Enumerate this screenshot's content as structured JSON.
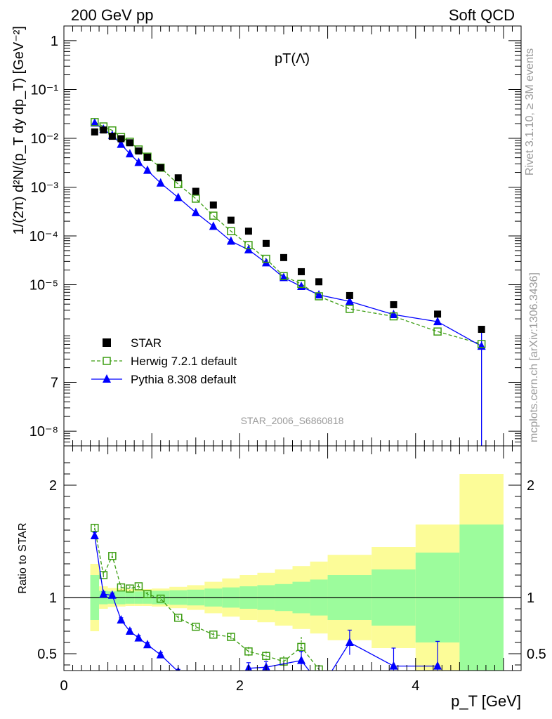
{
  "header": {
    "left": "200 GeV pp",
    "right": "Soft QCD"
  },
  "side_text": {
    "rivet": "Rivet 3.1.10, ≥ 3M events",
    "mcplots": "mcplots.cern.ch [arXiv:1306.3436]"
  },
  "chart_data": [
    {
      "type": "scatter",
      "title": "pT(Λ̄)",
      "analysis_label": "STAR_2006_S6860818",
      "ylabel": "1/(2π) d²N/(p_T dy dp_T) [GeV⁻²]",
      "xlabel": "p_T [GeV]",
      "xlim": [
        0,
        5.2
      ],
      "ylim": [
        5e-09,
        2
      ],
      "yscale": "log",
      "y_ticks": [
        "1",
        "10⁻¹",
        "10⁻²",
        "10⁻³",
        "10⁻⁴",
        "10⁻⁵",
        "7",
        "10⁻⁸"
      ],
      "legend_position": "lower-left",
      "legend": [
        "STAR",
        "Herwig 7.2.1 default",
        "Pythia 8.308 default"
      ],
      "series": [
        {
          "name": "STAR",
          "color": "#000000",
          "marker": "square-filled",
          "x": [
            0.35,
            0.45,
            0.55,
            0.65,
            0.75,
            0.85,
            0.95,
            1.1,
            1.3,
            1.5,
            1.7,
            1.9,
            2.1,
            2.3,
            2.5,
            2.7,
            2.9,
            3.25,
            3.75,
            4.25,
            4.75
          ],
          "y": [
            0.0135,
            0.0148,
            0.011,
            0.0098,
            0.0081,
            0.0055,
            0.0041,
            0.0025,
            0.00155,
            0.00082,
            0.00043,
            0.00021,
            0.000125,
            7e-05,
            3.6e-05,
            1.85e-05,
            1.15e-05,
            6e-06,
            3.9e-06,
            2.5e-06,
            1.22e-06
          ]
        },
        {
          "name": "Herwig 7.2.1 default",
          "color": "#3c9d12",
          "marker": "square-open",
          "linestyle": "dashed",
          "x": [
            0.35,
            0.45,
            0.55,
            0.65,
            0.75,
            0.85,
            0.95,
            1.1,
            1.3,
            1.5,
            1.7,
            1.9,
            2.1,
            2.3,
            2.5,
            2.7,
            2.9,
            3.25,
            3.75,
            4.25,
            4.75
          ],
          "y": [
            0.0215,
            0.0175,
            0.0145,
            0.0106,
            0.0085,
            0.0059,
            0.0042,
            0.0025,
            0.00115,
            0.00058,
            0.00026,
            0.000125,
            6.5e-05,
            3.4e-05,
            1.5e-05,
            1.04e-05,
            5.8e-06,
            3.2e-06,
            2.25e-06,
            1.1e-06,
            6.1e-07
          ]
        },
        {
          "name": "Pythia 8.308 default",
          "color": "#0000ff",
          "marker": "triangle-filled",
          "linestyle": "solid",
          "x": [
            0.35,
            0.45,
            0.55,
            0.65,
            0.75,
            0.85,
            0.95,
            1.1,
            1.3,
            1.5,
            1.7,
            1.9,
            2.1,
            2.3,
            2.5,
            2.7,
            2.9,
            3.25,
            3.75,
            4.25,
            4.75
          ],
          "y": [
            0.0205,
            0.0153,
            0.0115,
            0.0075,
            0.0048,
            0.0032,
            0.0022,
            0.00121,
            0.00061,
            0.0003,
            0.000157,
            7.8e-05,
            5.2e-05,
            2.8e-05,
            1.4e-05,
            9.2e-06,
            6.2e-06,
            4.55e-06,
            2.45e-06,
            1.75e-06,
            5.5e-07
          ]
        }
      ]
    },
    {
      "type": "scatter",
      "ylabel": "Ratio to STAR",
      "xlabel": "p_T [GeV]",
      "xlim": [
        0,
        5.2
      ],
      "ylim": [
        0.35,
        2.35
      ],
      "y_ticks": [
        "0.5",
        "1",
        "2"
      ],
      "x_ticks": [
        "0",
        "2",
        "4"
      ],
      "reference_line": 1,
      "bins": [
        0.3,
        0.4,
        0.5,
        0.6,
        0.7,
        0.8,
        0.9,
        1.0,
        1.2,
        1.4,
        1.6,
        1.8,
        2.0,
        2.2,
        2.4,
        2.6,
        2.8,
        3.0,
        3.5,
        4.0,
        4.5,
        5.0
      ],
      "band_inner": [
        0.2,
        0.06,
        0.055,
        0.06,
        0.055,
        0.055,
        0.055,
        0.06,
        0.065,
        0.07,
        0.08,
        0.09,
        0.1,
        0.11,
        0.12,
        0.14,
        0.16,
        0.2,
        0.25,
        0.4,
        0.65
      ],
      "band_outer": [
        0.3,
        0.1,
        0.085,
        0.08,
        0.075,
        0.075,
        0.075,
        0.08,
        0.095,
        0.11,
        0.14,
        0.17,
        0.2,
        0.22,
        0.25,
        0.28,
        0.32,
        0.38,
        0.45,
        0.65,
        1.1
      ],
      "band_colors": {
        "inner": "#9cfc9c",
        "outer": "#fcfc98"
      },
      "series": [
        {
          "name": "Herwig 7.2.1 default",
          "color": "#3c9d12",
          "x": [
            0.35,
            0.45,
            0.55,
            0.65,
            0.75,
            0.85,
            0.95,
            1.1,
            1.3,
            1.5,
            1.7,
            1.9,
            2.1,
            2.3,
            2.5,
            2.7,
            2.9
          ],
          "y": [
            1.62,
            1.2,
            1.37,
            1.09,
            1.08,
            1.1,
            1.03,
            0.99,
            0.82,
            0.74,
            0.67,
            0.65,
            0.52,
            0.48,
            0.43,
            0.56,
            0.36
          ],
          "err": [
            0.03,
            0.03,
            0.03,
            0.02,
            0.02,
            0.02,
            0.02,
            0.02,
            0.02,
            0.02,
            0.02,
            0.03,
            0.04,
            0.04,
            0.05,
            0.09,
            0.0
          ]
        },
        {
          "name": "Pythia 8.308 default",
          "color": "#0000ff",
          "x": [
            0.35,
            0.45,
            0.55,
            0.65,
            0.75,
            0.85,
            0.95,
            1.1,
            1.3,
            2.1,
            2.3,
            2.7,
            3.25,
            3.75,
            4.25
          ],
          "y": [
            1.55,
            1.03,
            1.02,
            0.8,
            0.7,
            0.64,
            0.58,
            0.49,
            0.34,
            0.37,
            0.38,
            0.44,
            0.6,
            0.39,
            0.39
          ],
          "err": [
            0.03,
            0.02,
            0.02,
            0.02,
            0.02,
            0.02,
            0.02,
            0.02,
            0.02,
            0.05,
            0.05,
            0.08,
            0.11,
            0.16,
            0.22
          ]
        }
      ]
    }
  ]
}
